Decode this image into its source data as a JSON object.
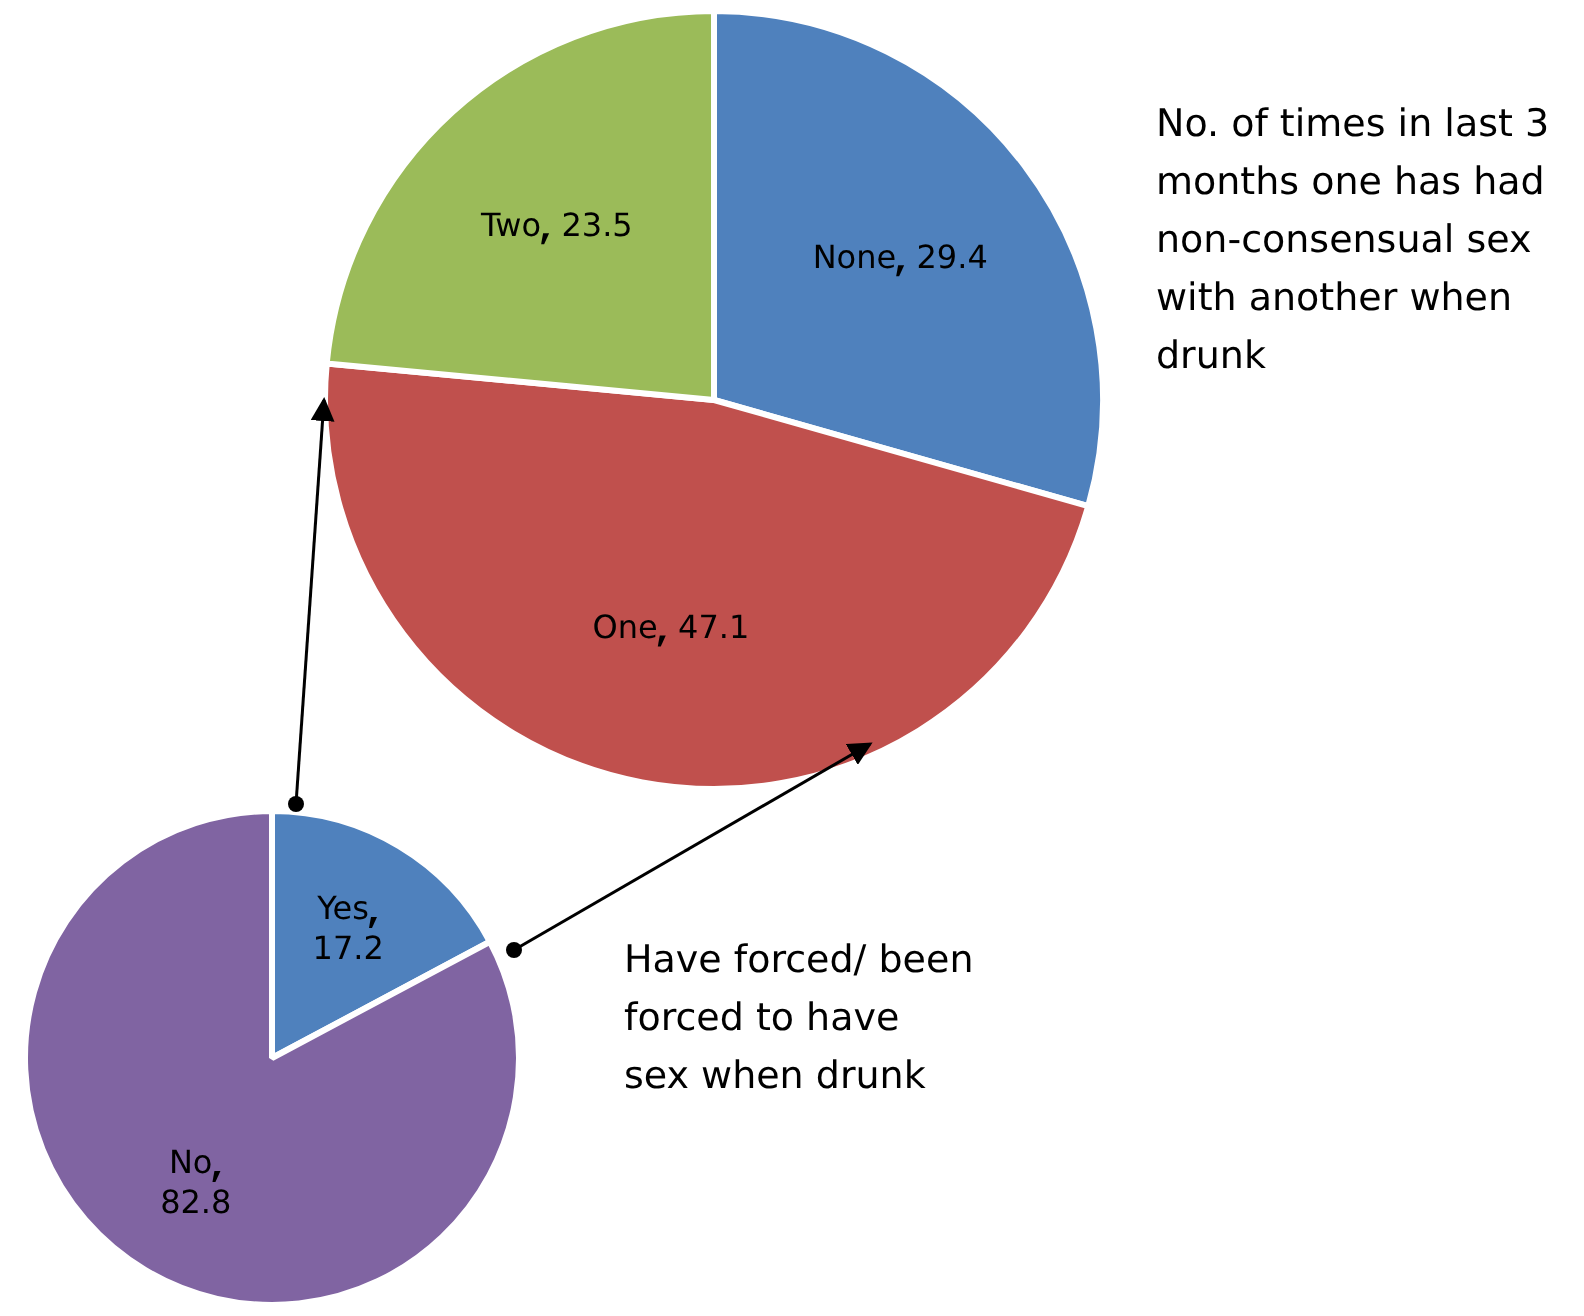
{
  "chart_data": [
    {
      "type": "pie",
      "title": "No. of times in last 3 months one has  had non-consensual sex with another when drunk",
      "categories": [
        "None",
        "One",
        "Two"
      ],
      "values": [
        29.4,
        47.1,
        23.5
      ],
      "colors": [
        "#4f81bd",
        "#c0504d",
        "#9bbb59"
      ],
      "data_labels": true,
      "legend": false
    },
    {
      "type": "pie",
      "title": "Have forced/ been forced to have sex when drunk",
      "categories": [
        "Yes",
        "No"
      ],
      "values": [
        17.2,
        82.8
      ],
      "colors": [
        "#4f81bd",
        "#8064a2"
      ],
      "data_labels": true,
      "legend": false
    }
  ]
}
